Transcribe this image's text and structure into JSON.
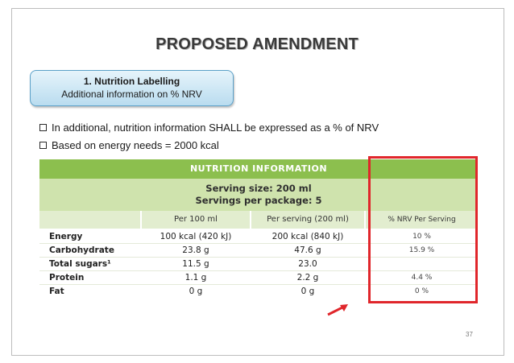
{
  "slide": {
    "title": "PROPOSED AMENDMENT",
    "section": {
      "heading": "1.   Nutrition Labelling",
      "subheading": "Additional information on % NRV"
    },
    "bullets": [
      "In additional, nutrition information SHALL be expressed as a % of NRV",
      "Based on energy needs = 2000 kcal"
    ],
    "page_number": "37"
  },
  "nutrition_table": {
    "header": "NUTRITION INFORMATION",
    "serving_size": "Serving size: 200 ml",
    "servings_per_package": "Servings per package: 5",
    "columns": [
      "Per 100 ml",
      "Per serving (200 ml)",
      "% NRV Per Serving"
    ],
    "rows": [
      {
        "label": "Energy",
        "per100": "100 kcal (420 kJ)",
        "perServing": "200 kcal (840 kJ)",
        "nrv": "10 %"
      },
      {
        "label": "Carbohydrate",
        "per100": "23.8 g",
        "perServing": "47.6 g",
        "nrv": "15.9 %"
      },
      {
        "label": "Total sugars¹",
        "per100": "11.5 g",
        "perServing": "23.0",
        "nrv": ""
      },
      {
        "label": "Protein",
        "per100": "1.1 g",
        "perServing": "2.2 g",
        "nrv": "4.4 %"
      },
      {
        "label": "Fat",
        "per100": "0 g",
        "perServing": "0 g",
        "nrv": "0 %"
      }
    ]
  },
  "colors": {
    "highlight": "#e0262b",
    "table_green": "#8cbf4e",
    "pill_border": "#5aa0c8"
  }
}
